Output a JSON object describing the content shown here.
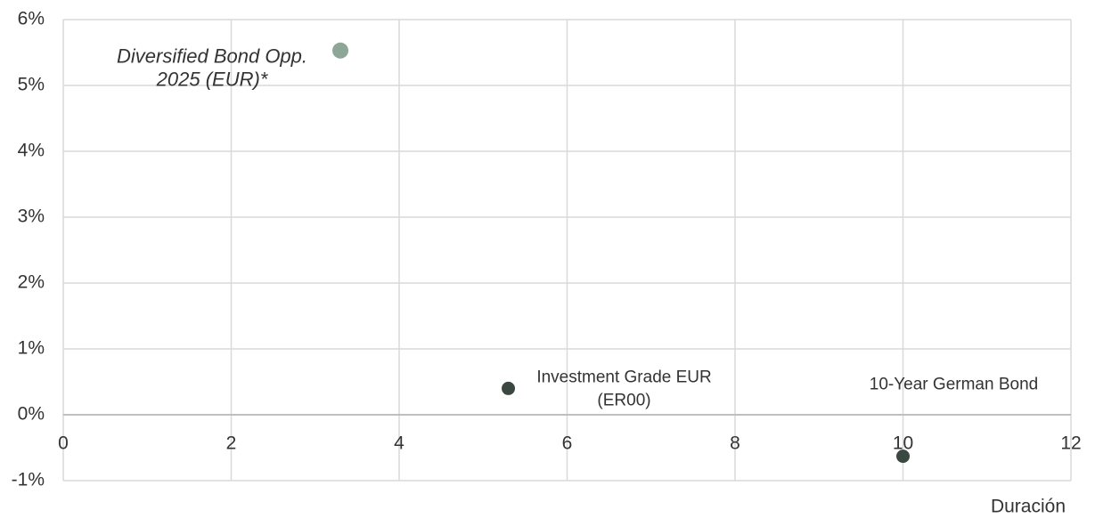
{
  "chart_data": {
    "type": "scatter",
    "x_label": "Duración",
    "xlim": [
      0,
      12
    ],
    "xticks": [
      0,
      2,
      4,
      6,
      8,
      10,
      12
    ],
    "ylim": [
      -1,
      6
    ],
    "yticks": [
      {
        "value": -1,
        "label": "-1%"
      },
      {
        "value": 0,
        "label": "0%"
      },
      {
        "value": 1,
        "label": "1%"
      },
      {
        "value": 2,
        "label": "2%"
      },
      {
        "value": 3,
        "label": "3%"
      },
      {
        "value": 4,
        "label": "4%"
      },
      {
        "value": 5,
        "label": "5%"
      },
      {
        "value": 6,
        "label": "6%"
      }
    ],
    "grid": true,
    "series": [
      {
        "label": [
          "Diversified Bond Opp.",
          "2025 (EUR)*"
        ],
        "color": "#8ea698",
        "x": [
          3.3
        ],
        "values": [
          5.53
        ]
      },
      {
        "label": [
          "Investment Grade EUR",
          "(ER00)"
        ],
        "color": "#3b4842",
        "x": [
          5.3
        ],
        "values": [
          0.4
        ]
      },
      {
        "label": [
          "10-Year German Bond"
        ],
        "color": "#3b4842",
        "x": [
          10
        ],
        "values": [
          -0.63
        ]
      }
    ]
  }
}
